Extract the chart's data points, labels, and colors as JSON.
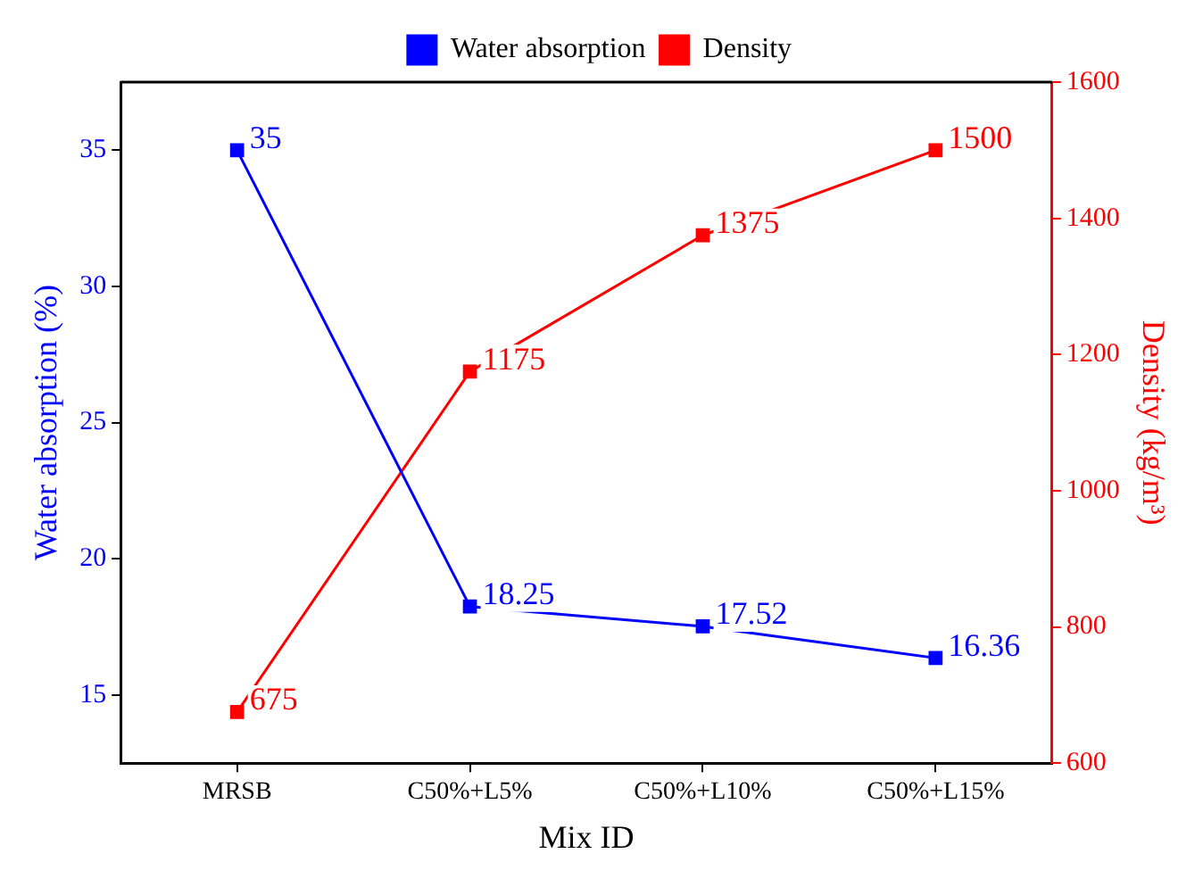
{
  "chart_data": {
    "type": "line",
    "xlabel": "Mix ID",
    "ylabel": "Water absorption (%)",
    "y2label": "Density (kg/m³)",
    "categories": [
      "MRSB",
      "C50%+L5%",
      "C50%+L10%",
      "C50%+L15%"
    ],
    "series": [
      {
        "name": "Water absorption",
        "color": "#0000ff",
        "values": [
          35,
          18.25,
          17.52,
          16.36
        ]
      },
      {
        "name": "Density",
        "color": "#ff0000",
        "values": [
          675,
          1175,
          1375,
          1500
        ],
        "axis": "y2"
      }
    ],
    "ylim": [
      12.5,
      37.5
    ],
    "yticks": [
      15,
      20,
      25,
      30,
      35
    ],
    "y2lim": [
      600,
      1600
    ],
    "y2ticks": [
      600,
      800,
      1000,
      1200,
      1400,
      1600
    ],
    "data_labels": true,
    "legend": "top",
    "marker": "square",
    "line_style": "solid",
    "grid": false
  }
}
